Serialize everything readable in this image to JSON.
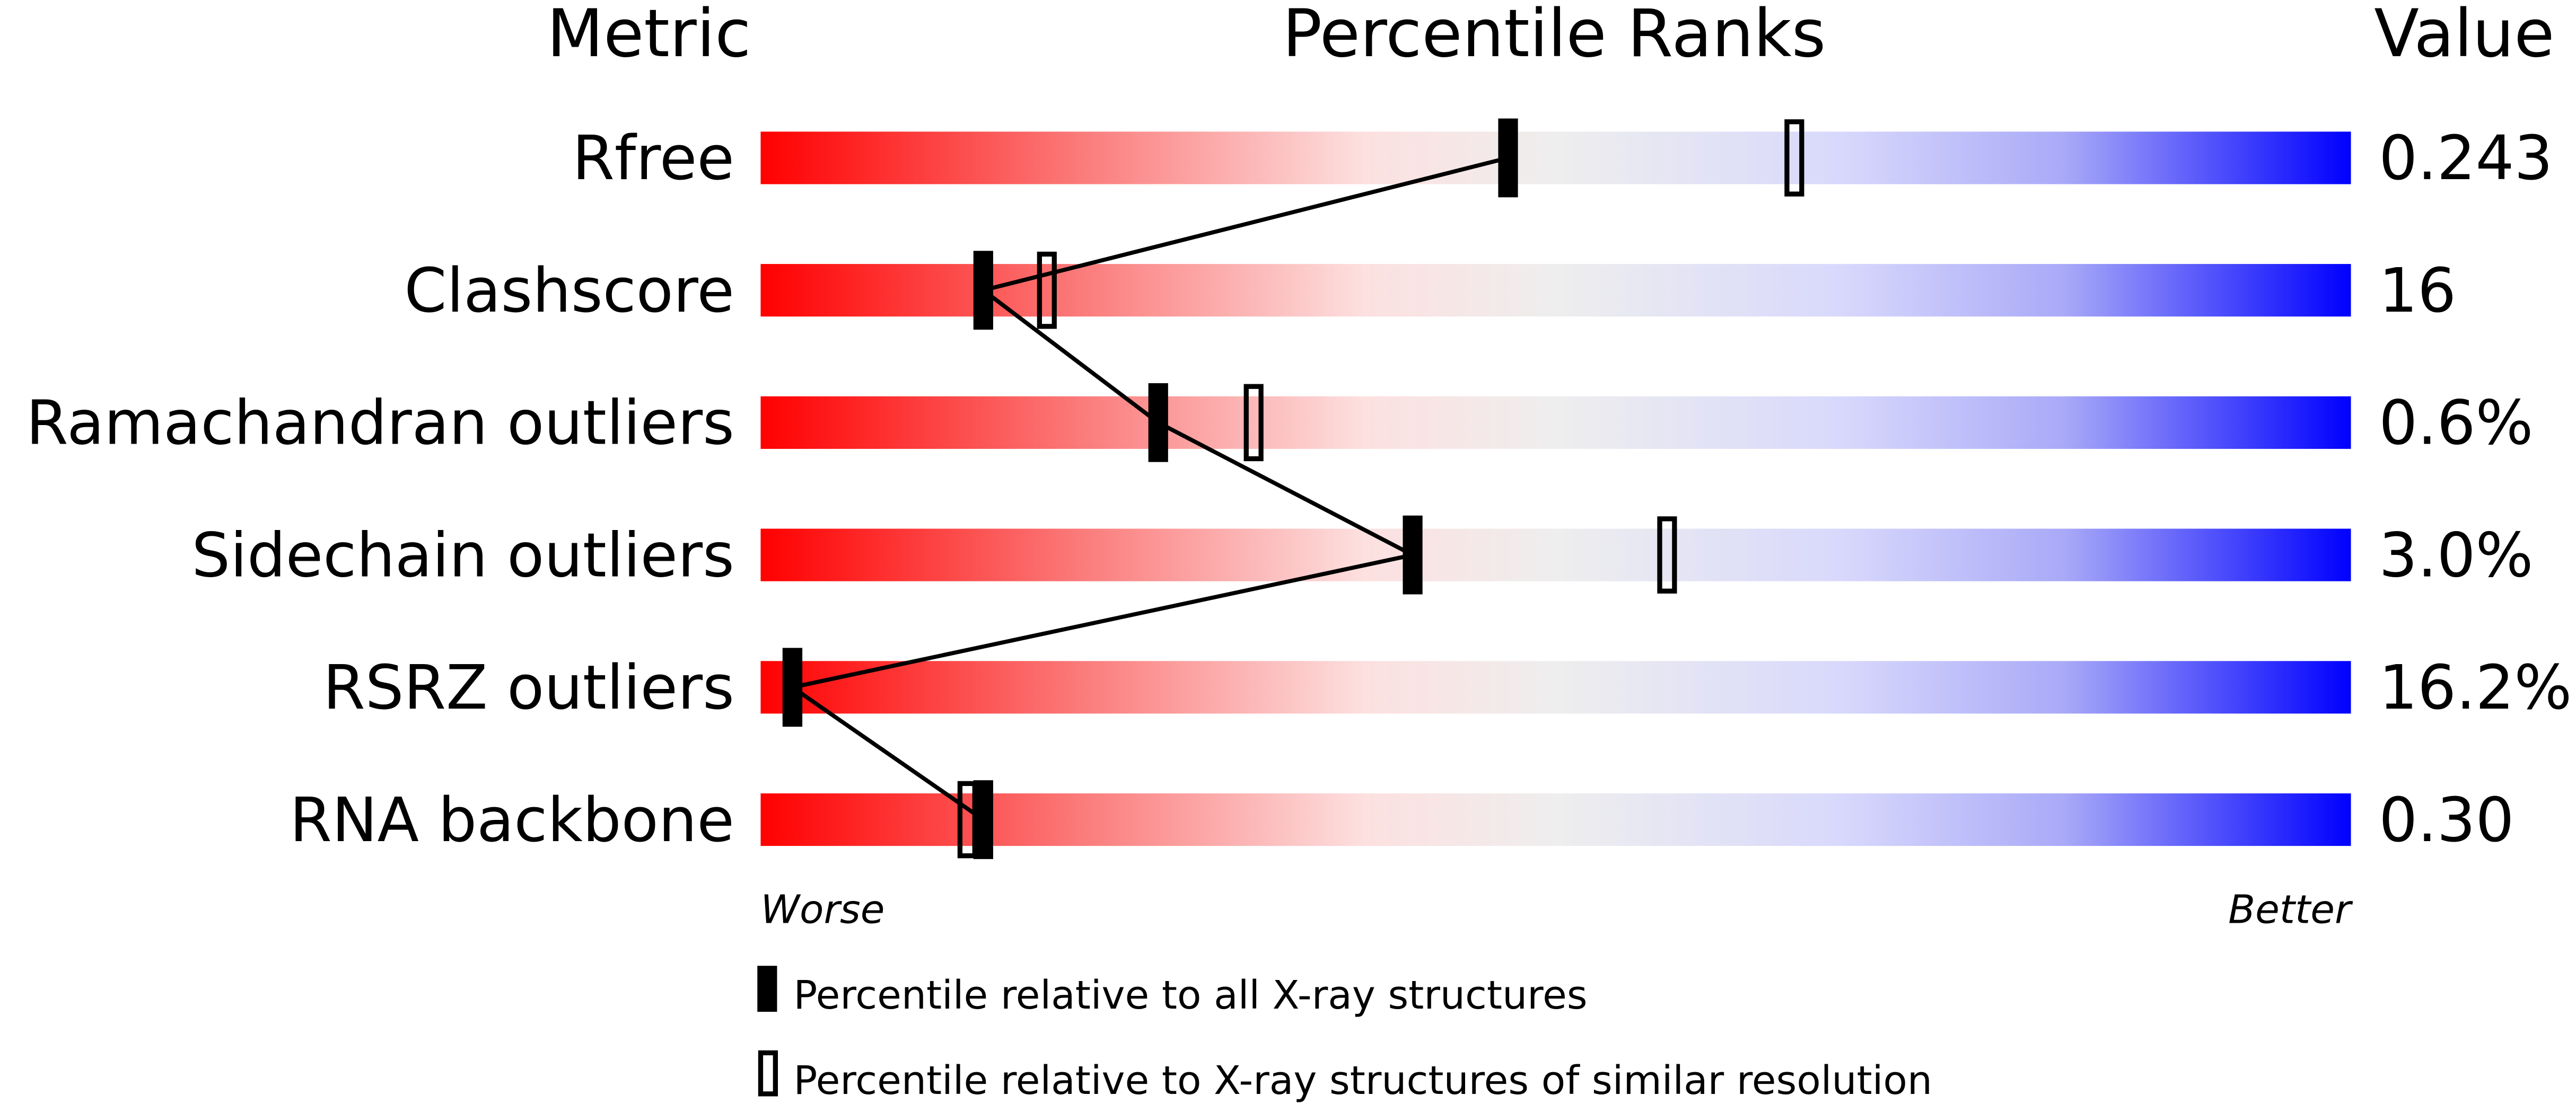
{
  "chart_data": {
    "type": "percentile",
    "title": "Percentile Ranks",
    "label_header": "Metric",
    "value_header": "Value",
    "categories": [
      "Rfree",
      "Clashscore",
      "Ramachandran outliers",
      "Sidechain outliers",
      "RSRZ outliers",
      "RNA backbone"
    ],
    "metric_values": [
      "0.243",
      "16",
      "0.6%",
      "3.0%",
      "16.2%",
      "0.30"
    ],
    "series": [
      {
        "name": "Percentile relative to all X-ray structures",
        "color": "#000000",
        "values": [
          47,
          14,
          25,
          41,
          2,
          14
        ]
      },
      {
        "name": "Percentile relative to X-ray structures of similar resolution",
        "color": "#000000",
        "values": [
          65,
          18,
          31,
          57,
          2,
          13
        ]
      }
    ],
    "xlim": [
      0,
      100
    ],
    "x_low_label": "Worse",
    "x_high_label": "Better"
  }
}
